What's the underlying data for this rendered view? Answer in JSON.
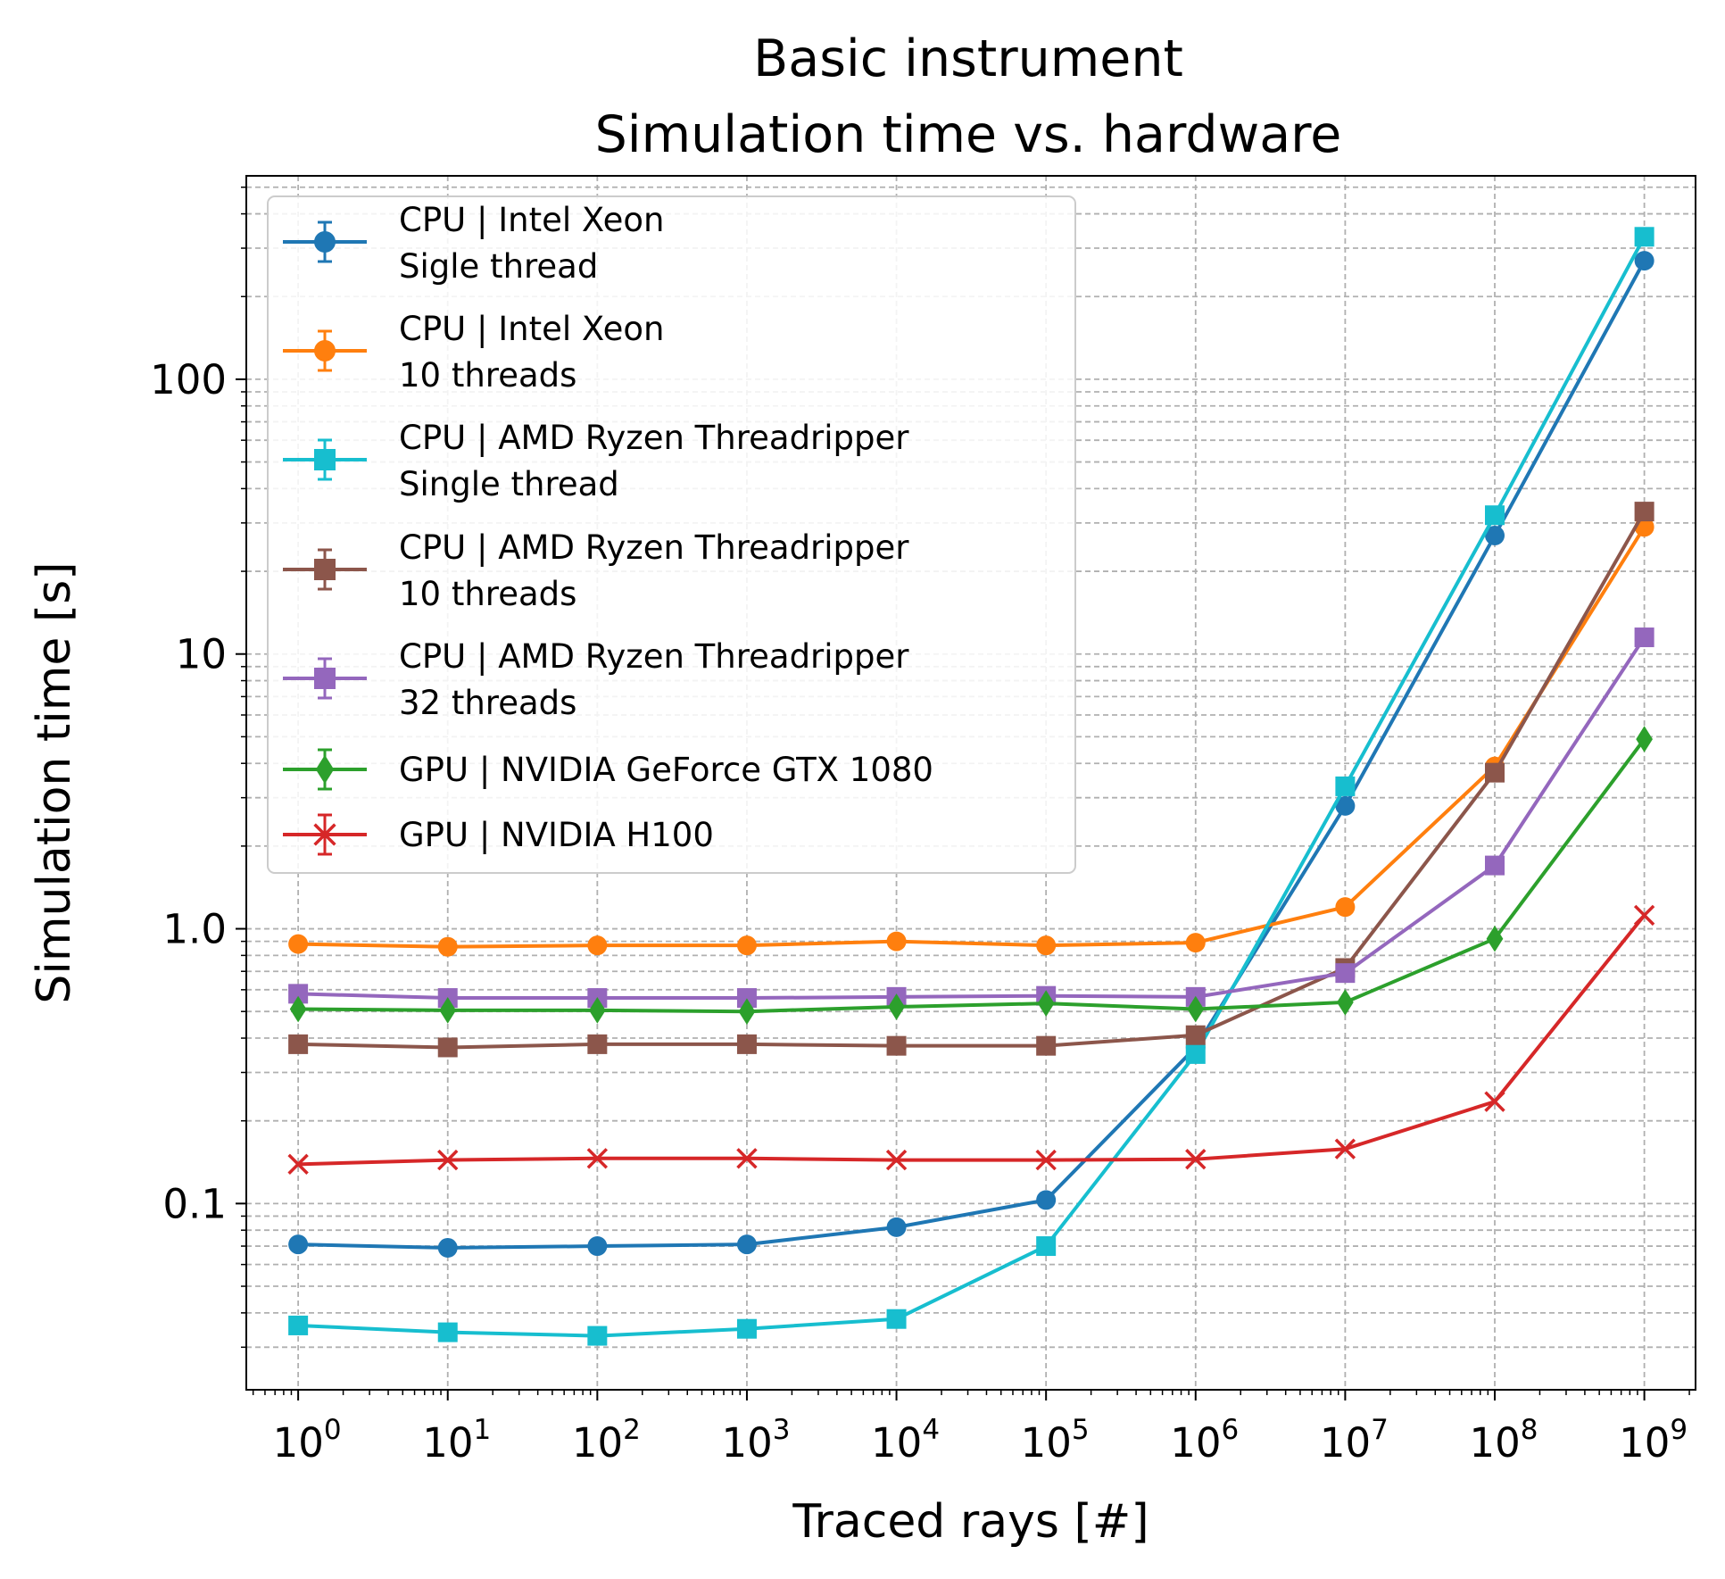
{
  "chart_data": {
    "type": "line",
    "title_lines": [
      "Basic instrument",
      "Simulation time vs. hardware"
    ],
    "xlabel": "Traced rays [#]",
    "ylabel": "Simulation time [s]",
    "x_scale": "log",
    "y_scale": "log",
    "xlim": [
      0.45,
      2200000000.0
    ],
    "ylim": [
      0.021,
      550
    ],
    "grid": true,
    "legend_position": "upper-left",
    "x": [
      1,
      10,
      100,
      1000,
      10000,
      100000,
      1000000,
      10000000,
      100000000,
      1000000000
    ],
    "x_ticks": [
      {
        "base": "10",
        "exp": "0"
      },
      {
        "base": "10",
        "exp": "1"
      },
      {
        "base": "10",
        "exp": "2"
      },
      {
        "base": "10",
        "exp": "3"
      },
      {
        "base": "10",
        "exp": "4"
      },
      {
        "base": "10",
        "exp": "5"
      },
      {
        "base": "10",
        "exp": "6"
      },
      {
        "base": "10",
        "exp": "7"
      },
      {
        "base": "10",
        "exp": "8"
      },
      {
        "base": "10",
        "exp": "9"
      }
    ],
    "y_ticks": [
      {
        "value": 0.1,
        "label": "0.1"
      },
      {
        "value": 1,
        "label": "1.0"
      },
      {
        "value": 10,
        "label": "10"
      },
      {
        "value": 100,
        "label": "100"
      }
    ],
    "series": [
      {
        "name": "CPU | Intel Xeon",
        "name_line2": "Sigle thread",
        "color": "#1f77b4",
        "marker": "circle",
        "values": [
          0.071,
          0.069,
          0.07,
          0.071,
          0.082,
          0.103,
          0.37,
          2.8,
          27,
          270
        ]
      },
      {
        "name": "CPU | Intel Xeon",
        "name_line2": "10 threads",
        "color": "#ff7f0e",
        "marker": "circle",
        "values": [
          0.88,
          0.86,
          0.87,
          0.87,
          0.9,
          0.87,
          0.89,
          1.2,
          3.9,
          29
        ]
      },
      {
        "name": "CPU | AMD Ryzen Threadripper",
        "name_line2": "Single thread",
        "color": "#17becf",
        "marker": "square",
        "values": [
          0.036,
          0.034,
          0.033,
          0.035,
          0.038,
          0.07,
          0.35,
          3.3,
          32,
          330
        ]
      },
      {
        "name": "CPU | AMD Ryzen Threadripper",
        "name_line2": "10 threads",
        "color": "#8c564b",
        "marker": "square",
        "values": [
          0.38,
          0.37,
          0.38,
          0.38,
          0.375,
          0.375,
          0.41,
          0.72,
          3.7,
          33
        ]
      },
      {
        "name": "CPU | AMD Ryzen Threadripper",
        "name_line2": "32 threads",
        "color": "#9467bd",
        "marker": "square",
        "values": [
          0.58,
          0.56,
          0.56,
          0.56,
          0.565,
          0.57,
          0.565,
          0.69,
          1.7,
          11.5
        ]
      },
      {
        "name": "GPU | NVIDIA GeForce GTX 1080",
        "name_line2": "",
        "color": "#2ca02c",
        "marker": "diamond",
        "values": [
          0.51,
          0.505,
          0.505,
          0.5,
          0.52,
          0.535,
          0.51,
          0.54,
          0.92,
          4.9
        ]
      },
      {
        "name": "GPU | NVIDIA H100",
        "name_line2": "",
        "color": "#d62728",
        "marker": "x",
        "values": [
          0.139,
          0.144,
          0.146,
          0.146,
          0.144,
          0.144,
          0.145,
          0.158,
          0.235,
          1.12
        ]
      }
    ]
  }
}
